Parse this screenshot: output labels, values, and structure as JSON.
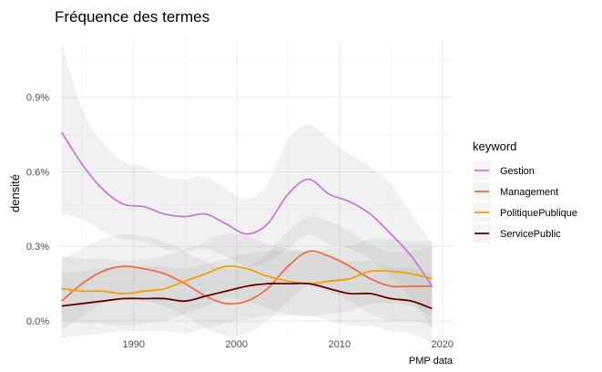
{
  "chart_data": {
    "type": "line",
    "title": "Fréquence des termes",
    "xlabel": "",
    "ylabel": "densité",
    "caption": "PMP data",
    "xlim": [
      1982.5,
      2021
    ],
    "ylim": [
      -0.00055,
      0.0113
    ],
    "x_ticks": [
      1990,
      2000,
      2010,
      2020
    ],
    "x_tick_labels": [
      "1990",
      "2000",
      "2010",
      "2020"
    ],
    "y_ticks": [
      0,
      0.003,
      0.006,
      0.009
    ],
    "y_tick_labels": [
      "0.0%",
      "0.3%",
      "0.6%",
      "0.9%"
    ],
    "grid": true,
    "legend": {
      "title": "keyword",
      "position": "right"
    },
    "series": [
      {
        "name": "Gestion",
        "color": "#c77cd6",
        "x": [
          1983,
          1985,
          1987,
          1989,
          1991,
          1993,
          1995,
          1997,
          1999,
          2001,
          2003,
          2005,
          2007,
          2009,
          2011,
          2013,
          2015,
          2017,
          2019
        ],
        "y": [
          0.0076,
          0.0063,
          0.0053,
          0.0047,
          0.0046,
          0.0043,
          0.0042,
          0.0043,
          0.0039,
          0.0035,
          0.0039,
          0.0051,
          0.0057,
          0.0051,
          0.0048,
          0.0043,
          0.0035,
          0.0026,
          0.0014
        ],
        "band_upper": [
          0.0112,
          0.0085,
          0.0072,
          0.0064,
          0.0062,
          0.0058,
          0.0057,
          0.0058,
          0.0053,
          0.0049,
          0.0055,
          0.0073,
          0.0079,
          0.0073,
          0.0067,
          0.0062,
          0.0055,
          0.0043,
          0.0031
        ],
        "band_lower": [
          0.0043,
          0.0041,
          0.0036,
          0.0033,
          0.0032,
          0.0029,
          0.0028,
          0.0029,
          0.0026,
          0.0022,
          0.0024,
          0.0029,
          0.0035,
          0.0031,
          0.0029,
          0.0025,
          0.0018,
          0.0009,
          -0.0003
        ]
      },
      {
        "name": "Management",
        "color": "#f06d4b",
        "x": [
          1983,
          1985,
          1987,
          1989,
          1991,
          1993,
          1995,
          1997,
          1999,
          2001,
          2003,
          2005,
          2007,
          2009,
          2011,
          2013,
          2015,
          2017,
          2019
        ],
        "y": [
          0.0008,
          0.0015,
          0.002,
          0.0022,
          0.0021,
          0.0019,
          0.0015,
          0.001,
          0.0007,
          0.0008,
          0.0013,
          0.0022,
          0.0028,
          0.0026,
          0.0022,
          0.0017,
          0.0014,
          0.0014,
          0.0014
        ],
        "band_upper": [
          0.0025,
          0.0029,
          0.0033,
          0.0035,
          0.0034,
          0.0032,
          0.0028,
          0.0024,
          0.0021,
          0.0022,
          0.0027,
          0.0036,
          0.0042,
          0.004,
          0.0036,
          0.0031,
          0.0028,
          0.0028,
          0.003
        ],
        "band_lower": [
          -0.0004,
          0.0002,
          0.0007,
          0.0009,
          0.0008,
          0.0006,
          0.0002,
          -0.0003,
          -0.0006,
          -0.0005,
          0.0,
          0.0008,
          0.0014,
          0.0012,
          0.0008,
          0.0003,
          0.0,
          0.0,
          -0.0002
        ]
      },
      {
        "name": "PolitiquePublique",
        "color": "#f5a000",
        "x": [
          1983,
          1985,
          1987,
          1989,
          1991,
          1993,
          1995,
          1997,
          1999,
          2001,
          2003,
          2005,
          2007,
          2009,
          2011,
          2013,
          2015,
          2017,
          2019
        ],
        "y": [
          0.0013,
          0.0012,
          0.0012,
          0.0011,
          0.0012,
          0.0013,
          0.0016,
          0.0019,
          0.0022,
          0.0021,
          0.0018,
          0.0016,
          0.0015,
          0.0016,
          0.0017,
          0.002,
          0.002,
          0.0019,
          0.0017
        ],
        "band_upper": [
          0.0026,
          0.0025,
          0.0025,
          0.0024,
          0.0025,
          0.0026,
          0.0029,
          0.0032,
          0.0035,
          0.0034,
          0.0031,
          0.0029,
          0.0028,
          0.0029,
          0.003,
          0.0033,
          0.0033,
          0.0032,
          0.0032
        ],
        "band_lower": [
          0.0,
          -0.0001,
          -0.0001,
          -0.0002,
          -0.0001,
          0.0,
          0.0003,
          0.0006,
          0.0009,
          0.0008,
          0.0005,
          0.0003,
          0.0002,
          0.0003,
          0.0004,
          0.0007,
          0.0007,
          0.0006,
          0.0002
        ]
      },
      {
        "name": "ServicePublic",
        "color": "#6b0000",
        "x": [
          1983,
          1985,
          1987,
          1989,
          1991,
          1993,
          1995,
          1997,
          1999,
          2001,
          2003,
          2005,
          2007,
          2009,
          2011,
          2013,
          2015,
          2017,
          2019
        ],
        "y": [
          0.0006,
          0.0007,
          0.0008,
          0.0009,
          0.0009,
          0.0009,
          0.0008,
          0.001,
          0.0012,
          0.0014,
          0.0015,
          0.0015,
          0.0015,
          0.0013,
          0.0011,
          0.0011,
          0.0009,
          0.0008,
          0.0005
        ],
        "band_upper": [
          0.0019,
          0.002,
          0.0021,
          0.0022,
          0.0022,
          0.0022,
          0.0021,
          0.0023,
          0.0025,
          0.0027,
          0.0028,
          0.0028,
          0.0028,
          0.0026,
          0.0024,
          0.0024,
          0.0022,
          0.0021,
          0.0019
        ],
        "band_lower": [
          -0.0007,
          -0.0006,
          -0.0005,
          -0.0004,
          -0.0004,
          -0.0004,
          -0.0005,
          -0.0003,
          -0.0001,
          0.0001,
          0.0002,
          0.0002,
          0.0002,
          0.0,
          -0.0002,
          -0.0002,
          -0.0004,
          -0.0005,
          -0.0009
        ]
      }
    ]
  }
}
